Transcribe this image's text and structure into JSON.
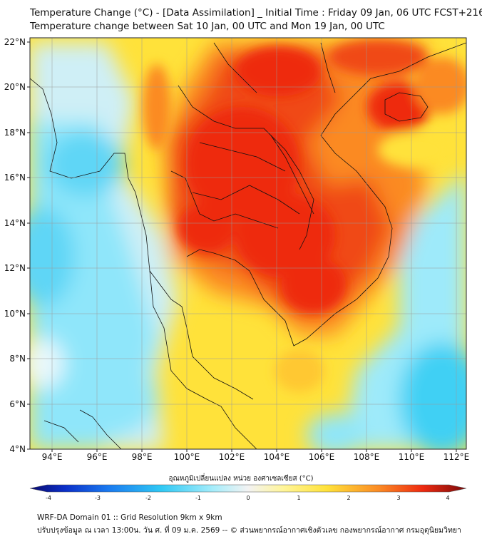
{
  "header": {
    "title": "Temperature Change (°C) - [Data Assimilation] _ Initial Time : Friday 09 Jan, 06 UTC FCST+216",
    "subtitle": "Temperature change between Sat 10 Jan, 00 UTC and Mon 19 Jan, 00 UTC"
  },
  "map": {
    "lat_labels": [
      "22°N",
      "20°N",
      "18°N",
      "16°N",
      "14°N",
      "12°N",
      "10°N",
      "8°N",
      "6°N",
      "4°N"
    ],
    "lon_labels": [
      "94°E",
      "96°E",
      "98°E",
      "100°E",
      "102°E",
      "104°E",
      "106°E",
      "108°E",
      "110°E",
      "112°E"
    ],
    "lat_range": [
      4,
      22.2
    ],
    "lon_range": [
      93,
      112.5
    ],
    "colors": {
      "warm_core": "#ee2a10",
      "warm": "#fb8a24",
      "mild": "#ffe23a",
      "neutral": "#f3f3f3",
      "cool": "#8fe6fa",
      "cold": "#2fc8f4",
      "deep_cold": "#1155cc"
    }
  },
  "colorbar": {
    "title": "อุณหภูมิเปลี่ยนแปลง หน่วย องศาเซลเซียส (°C)",
    "ticks": [
      "-4",
      "-3",
      "-2",
      "-1",
      "0",
      "1",
      "2",
      "3",
      "4"
    ],
    "min": -4,
    "max": 4
  },
  "footer": {
    "line1": "WRF-DA Domain 01 :: Grid Resolution 9km x 9km",
    "line2": "ปรับปรุงข้อมูล ณ เวลา 13:00น. วัน ศ. ที่ 09 ม.ค. 2569 -- © ส่วนพยากรณ์อากาศเชิงตัวเลข กองพยากรณ์อากาศ กรมอุตุนิยมวิทยา"
  }
}
